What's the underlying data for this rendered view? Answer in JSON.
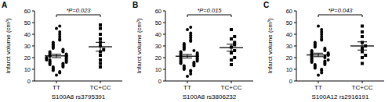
{
  "chart_data": [
    {
      "type": "scatter",
      "title": "A",
      "y_label": "Infarct volume (cm³)",
      "x_label": "S100A8 rs3795391",
      "annotation": "*P=0.023",
      "categories": [
        "TT",
        "TC+CC"
      ],
      "color": "#000000",
      "ylim": [
        0,
        60
      ],
      "yticks": [
        0,
        10,
        20,
        30,
        40,
        50,
        60
      ],
      "groups": [
        {
          "marker": "circle",
          "mean": 21.5,
          "error": 1.5,
          "values": [
            5,
            7,
            8,
            9,
            10,
            11,
            12,
            12,
            13,
            14,
            14,
            15,
            15,
            16,
            16,
            17,
            17,
            18,
            18,
            18,
            19,
            19,
            20,
            20,
            21,
            21,
            22,
            22,
            23,
            23,
            24,
            25,
            25,
            26,
            27,
            28,
            29,
            30,
            31,
            32,
            33,
            35,
            36,
            38,
            40,
            42,
            45,
            47
          ]
        },
        {
          "marker": "square",
          "mean": 29.3,
          "error": 3.8,
          "values": [
            12,
            15,
            18,
            22,
            25,
            27,
            30,
            33,
            36,
            40,
            45,
            48
          ]
        }
      ]
    },
    {
      "type": "scatter",
      "title": "B",
      "y_label": "Infarct volume (cm³)",
      "x_label": "S100A8 rs3806232",
      "annotation": "*P=0.015",
      "categories": [
        "TT",
        "TC+CC"
      ],
      "color": "#000000",
      "ylim": [
        0,
        60
      ],
      "yticks": [
        0,
        10,
        20,
        30,
        40,
        50,
        60
      ],
      "groups": [
        {
          "marker": "circle",
          "mean": 21.2,
          "error": 1.5,
          "values": [
            4,
            6,
            8,
            9,
            10,
            11,
            12,
            13,
            13,
            14,
            15,
            15,
            16,
            16,
            17,
            17,
            18,
            18,
            19,
            19,
            20,
            20,
            21,
            21,
            22,
            22,
            23,
            23,
            24,
            24,
            25,
            26,
            27,
            28,
            29,
            30,
            31,
            32,
            34,
            35,
            37,
            39,
            41,
            44,
            46
          ]
        },
        {
          "marker": "square",
          "mean": 28.5,
          "error": 3.0,
          "values": [
            14,
            18,
            20,
            24,
            26,
            29,
            31,
            33,
            36,
            38,
            44
          ]
        }
      ]
    },
    {
      "type": "scatter",
      "title": "C",
      "y_label": "Infarct volume (cm³)",
      "x_label": "S100A12 rs2916191",
      "annotation": "*P=0.043",
      "categories": [
        "TT",
        "TC+CC"
      ],
      "color": "#000000",
      "ylim": [
        0,
        60
      ],
      "yticks": [
        0,
        10,
        20,
        30,
        40,
        50,
        60
      ],
      "groups": [
        {
          "marker": "circle",
          "mean": 22.3,
          "error": 1.5,
          "values": [
            5,
            7,
            9,
            10,
            11,
            12,
            13,
            14,
            14,
            15,
            16,
            16,
            17,
            17,
            18,
            18,
            19,
            20,
            20,
            21,
            21,
            22,
            22,
            23,
            23,
            24,
            24,
            25,
            26,
            26,
            27,
            28,
            29,
            30,
            31,
            32,
            33,
            35,
            36,
            38,
            40,
            42,
            44,
            47
          ]
        },
        {
          "marker": "square",
          "mean": 30.0,
          "error": 3.5,
          "values": [
            15,
            20,
            22,
            25,
            28,
            30,
            33,
            38,
            42,
            47
          ]
        }
      ]
    }
  ]
}
